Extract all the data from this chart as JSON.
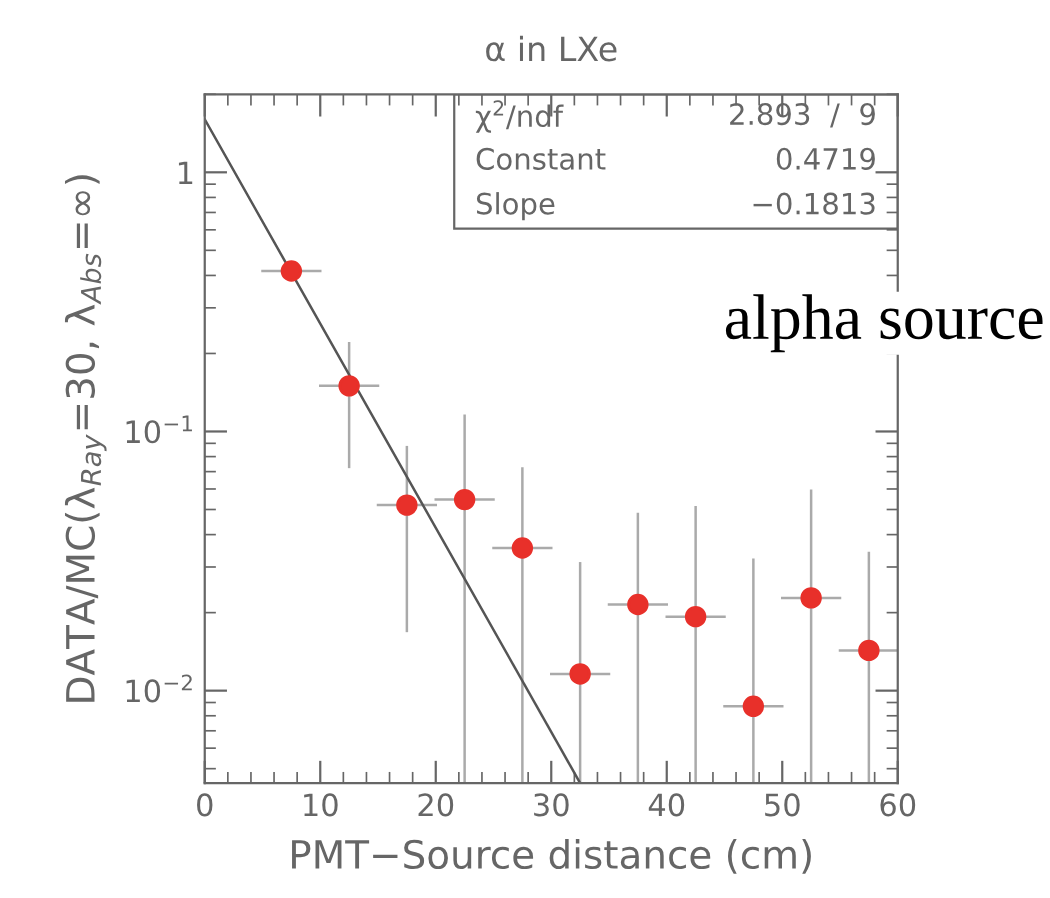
{
  "chart_data": {
    "type": "scatter",
    "title": "α in LXe",
    "xlabel": "PMT−Source distance (cm)",
    "ylabel": "DATA/MC(λ$_{Ray}$=30, λ$_{Abs}$=∞)",
    "x": [
      7.5,
      12.5,
      17.5,
      22.5,
      27.5,
      32.5,
      37.5,
      42.5,
      47.5,
      52.5,
      57.5
    ],
    "series": [
      {
        "color": "#e8302a",
        "marker": "circle",
        "values": [
          0.416,
          0.15,
          0.052,
          0.0546,
          0.0355,
          0.0116,
          0.0215,
          0.0193,
          0.0087,
          0.0228,
          0.0143
        ],
        "xerrors": [
          2.5,
          2.5,
          2.5,
          2.5,
          2.5,
          2.5,
          2.5,
          2.5,
          2.5,
          2.5,
          2.5
        ],
        "errors": [
          null,
          [
            0.073,
            0.219
          ],
          [
            0.017,
            0.087
          ],
          [
            0.0044,
            0.115
          ],
          [
            0.0044,
            0.072
          ],
          [
            0.0044,
            0.031
          ],
          [
            0.0044,
            0.048
          ],
          [
            0.0044,
            0.051
          ],
          [
            0.0044,
            0.032
          ],
          [
            0.0044,
            0.059
          ],
          [
            0.0044,
            0.034
          ]
        ]
      },
      {
        "type": "line",
        "color": "#555555",
        "x": [
          0,
          32.5
        ],
        "values": [
          1.6,
          0.0044
        ]
      }
    ],
    "log": "y",
    "xlim": [
      0,
      60
    ],
    "xticks": [
      0,
      10,
      20,
      30,
      40,
      50,
      60
    ],
    "ylim": [
      0.0044,
      2.0
    ],
    "yticks": [
      {
        "value": 0.01,
        "label": "10$^{−2}$"
      },
      {
        "value": 0.1,
        "label": "10$^{−1}$"
      },
      1
    ],
    "grid": false,
    "legend": false,
    "annotations": [
      "χ$^{2}$/ndf    2.893  /  9",
      "Constant    0.4719",
      "Slope    −0.1813",
      "alpha source"
    ]
  }
}
